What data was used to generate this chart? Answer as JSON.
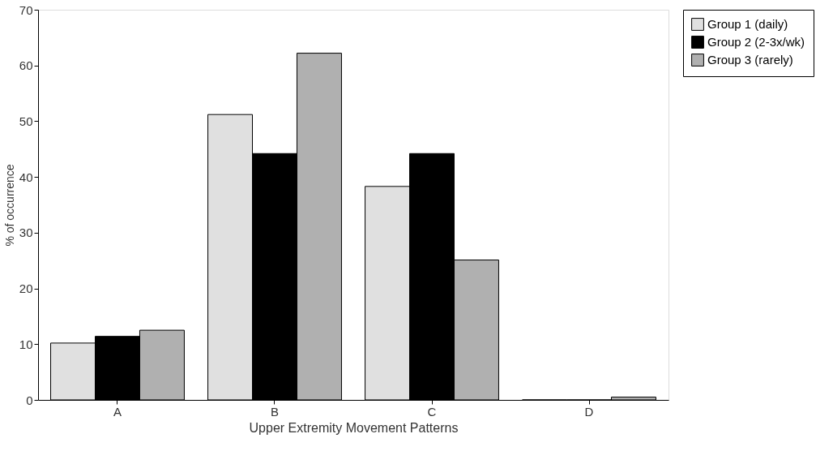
{
  "chart_data": {
    "type": "bar",
    "xlabel": "Upper Extremity Movement Patterns",
    "ylabel": "% of occurrence",
    "categories": [
      "A",
      "B",
      "C",
      "D"
    ],
    "series": [
      {
        "name": "Group 1 (daily)",
        "color": "#e0e0e0",
        "values": [
          10.2,
          51.2,
          38.3,
          0
        ]
      },
      {
        "name": "Group 2 (2-3x/wk)",
        "color": "#000000",
        "values": [
          11.4,
          44.2,
          44.2,
          0
        ]
      },
      {
        "name": "Group 3 (rarely)",
        "color": "#b0b0b0",
        "values": [
          12.5,
          62.2,
          25.1,
          0.5
        ]
      }
    ],
    "ylim": [
      0,
      70
    ],
    "yticks": [
      0,
      10,
      20,
      30,
      40,
      50,
      60,
      70
    ],
    "grid": false,
    "legend": "right"
  }
}
